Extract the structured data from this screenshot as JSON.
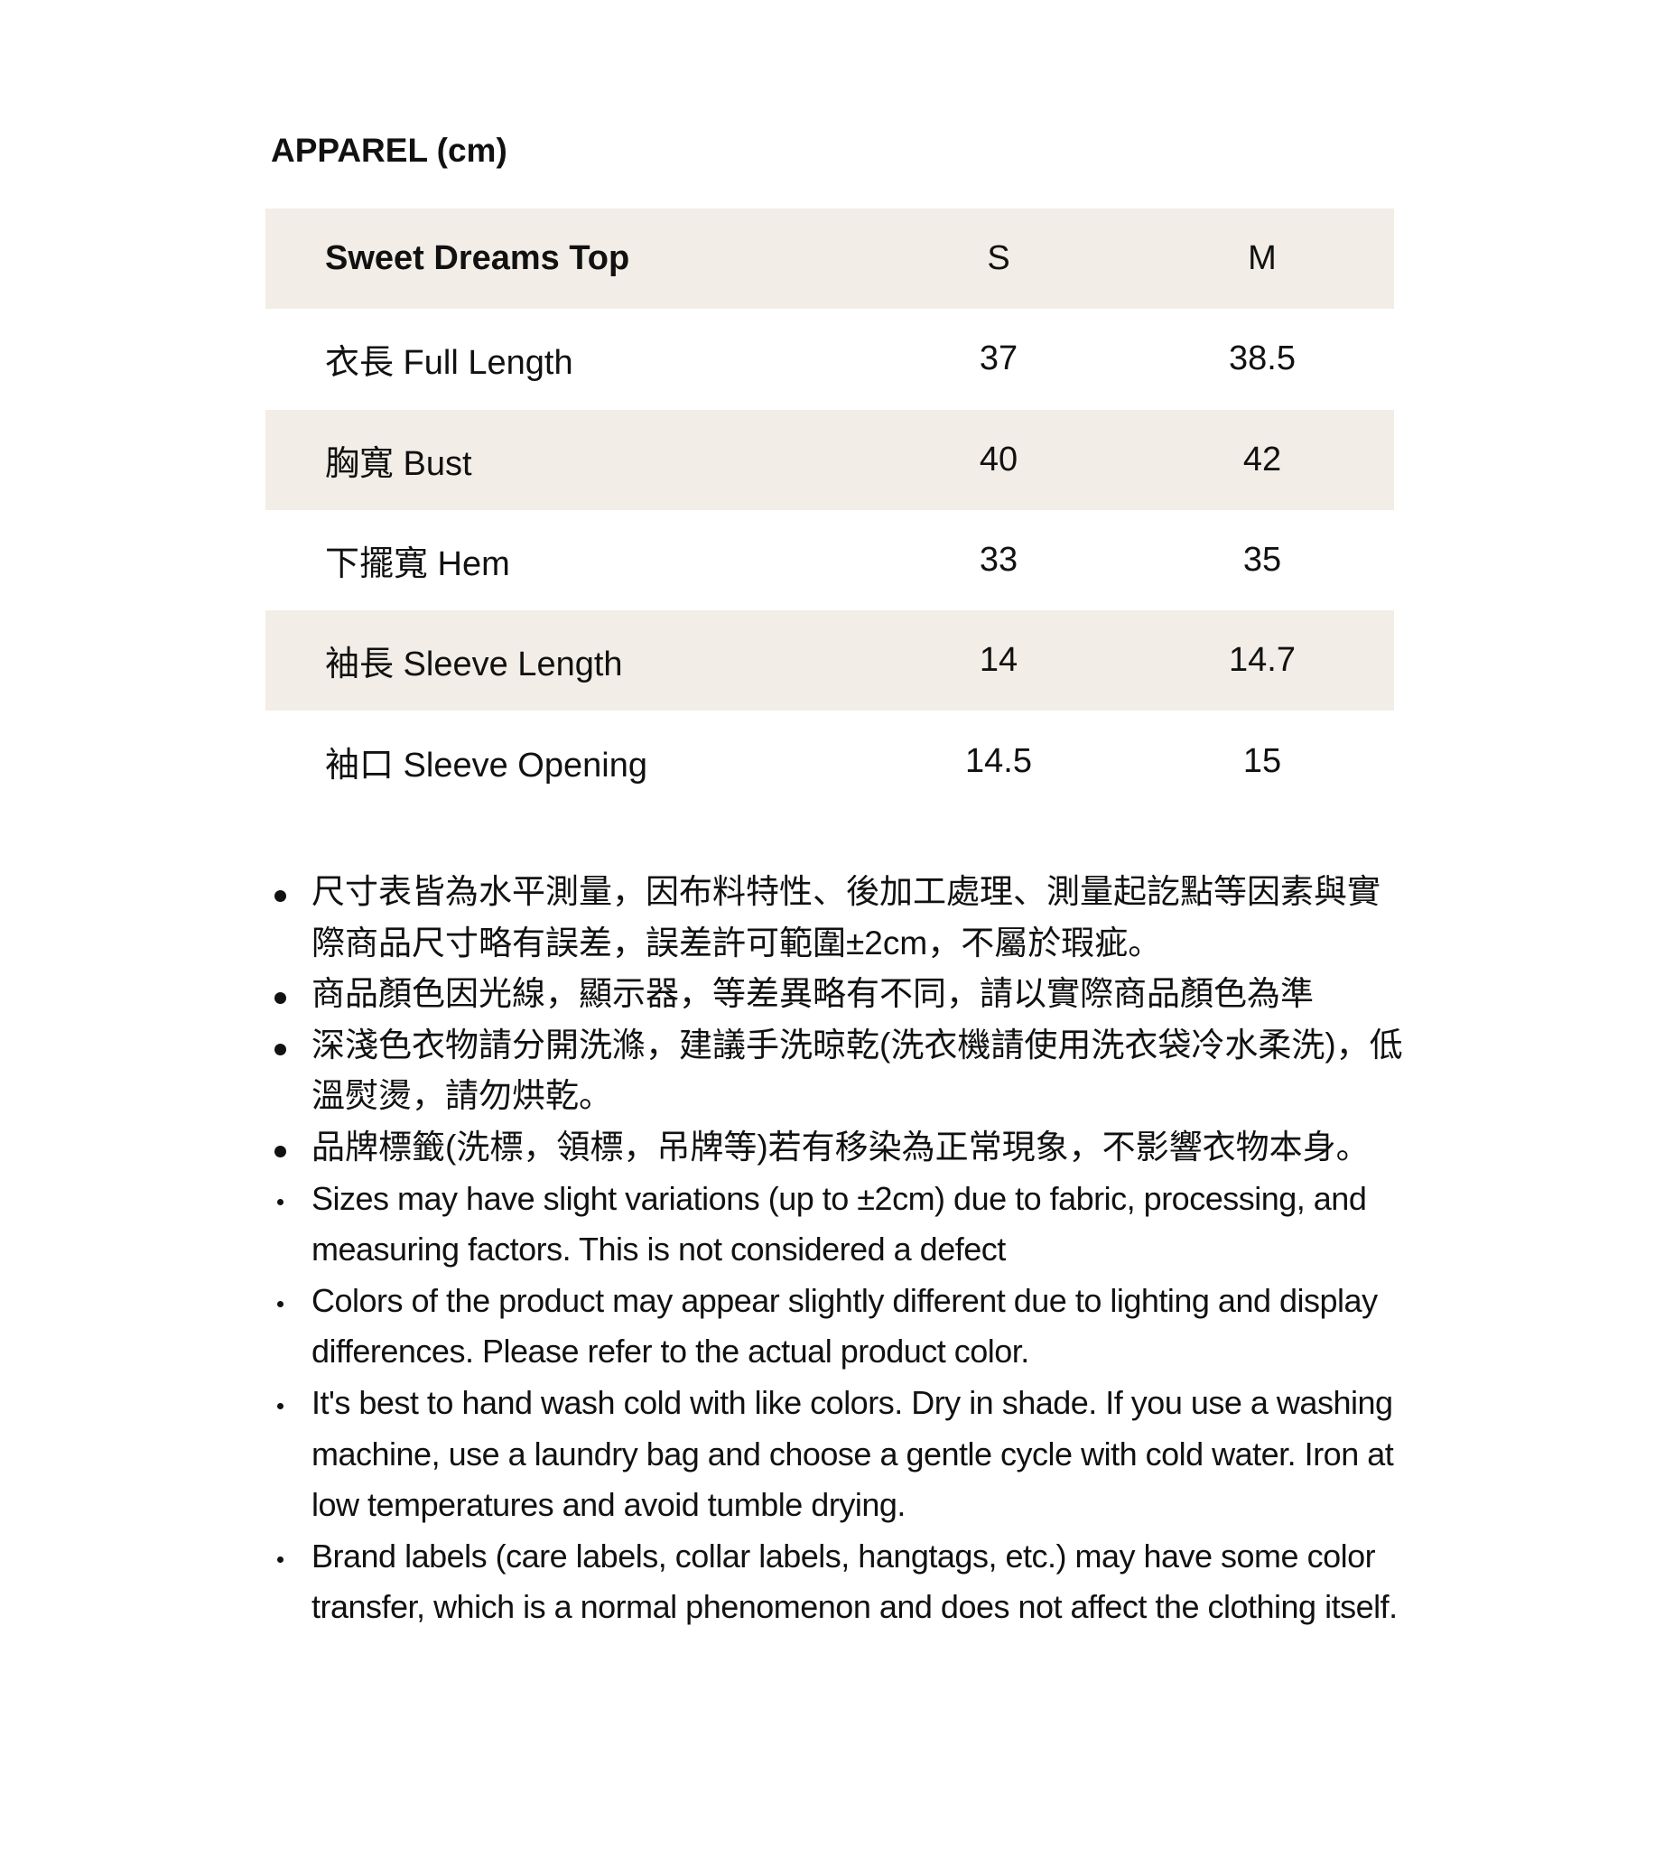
{
  "title": "APPAREL (cm)",
  "table": {
    "header": {
      "product": "Sweet Dreams Top",
      "sizes": [
        "S",
        "M"
      ]
    },
    "rows": [
      {
        "label": "衣長 Full Length",
        "values": [
          "37",
          "38.5"
        ]
      },
      {
        "label": "胸寬 Bust",
        "values": [
          "40",
          "42"
        ]
      },
      {
        "label": "下擺寬 Hem",
        "values": [
          "33",
          "35"
        ]
      },
      {
        "label": "袖長 Sleeve Length",
        "values": [
          "14",
          "14.7"
        ]
      },
      {
        "label": "袖口 Sleeve Opening",
        "values": [
          "14.5",
          "15"
        ]
      }
    ]
  },
  "notes_zh": [
    "尺寸表皆為水平測量，因布料特性、後加工處理、測量起訖點等因素與實際商品尺寸略有誤差，誤差許可範圍±2cm，不屬於瑕疵。",
    "商品顏色因光線，顯示器，等差異略有不同，請以實際商品顏色為準",
    "深淺色衣物請分開洗滌，建議手洗晾乾(洗衣機請使用洗衣袋冷水柔洗)，低溫熨燙，請勿烘乾。",
    "品牌標籤(洗標，領標，吊牌等)若有移染為正常現象，不影響衣物本身。"
  ],
  "notes_en": [
    "Sizes may have slight variations (up to ±2cm) due to fabric, processing, and measuring factors. This is not considered a defect",
    "Colors of the product may appear slightly different due to lighting and display differences. Please refer to the actual product color.",
    "It's best to hand wash cold with like colors. Dry in shade. If you use a washing machine, use a laundry bag and choose a gentle cycle with cold water. Iron at low temperatures and avoid tumble drying.",
    "Brand labels (care labels, collar labels, hangtags, etc.) may have some color transfer, which is a normal phenomenon and does not affect the clothing itself."
  ],
  "colors": {
    "row_shade": "#f2ede6",
    "text": "#111111"
  }
}
